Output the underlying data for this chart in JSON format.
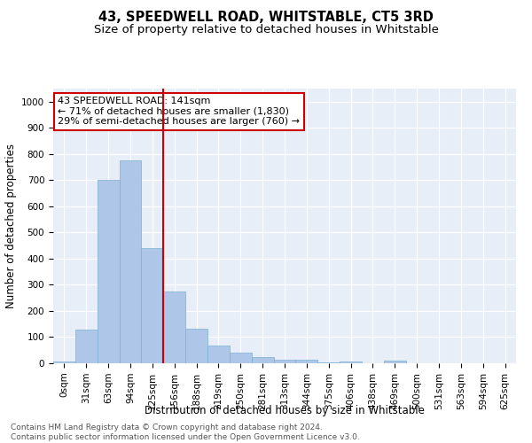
{
  "title": "43, SPEEDWELL ROAD, WHITSTABLE, CT5 3RD",
  "subtitle": "Size of property relative to detached houses in Whitstable",
  "xlabel": "Distribution of detached houses by size in Whitstable",
  "ylabel": "Number of detached properties",
  "bar_color": "#aec6e8",
  "bar_edge_color": "#7aafd4",
  "background_color": "#e8eef8",
  "grid_color": "white",
  "categories": [
    "0sqm",
    "31sqm",
    "63sqm",
    "94sqm",
    "125sqm",
    "156sqm",
    "188sqm",
    "219sqm",
    "250sqm",
    "281sqm",
    "313sqm",
    "344sqm",
    "375sqm",
    "406sqm",
    "438sqm",
    "469sqm",
    "500sqm",
    "531sqm",
    "563sqm",
    "594sqm",
    "625sqm"
  ],
  "values": [
    8,
    128,
    700,
    775,
    440,
    275,
    133,
    68,
    40,
    25,
    15,
    12,
    5,
    8,
    0,
    10,
    0,
    0,
    0,
    0,
    0
  ],
  "ylim": [
    0,
    1050
  ],
  "yticks": [
    0,
    100,
    200,
    300,
    400,
    500,
    600,
    700,
    800,
    900,
    1000
  ],
  "vline_x": 4.5,
  "vline_color": "#cc0000",
  "annotation_text": "43 SPEEDWELL ROAD: 141sqm\n← 71% of detached houses are smaller (1,830)\n29% of semi-detached houses are larger (760) →",
  "annotation_box_color": "#cc0000",
  "footnote": "Contains HM Land Registry data © Crown copyright and database right 2024.\nContains public sector information licensed under the Open Government Licence v3.0.",
  "title_fontsize": 10.5,
  "subtitle_fontsize": 9.5,
  "xlabel_fontsize": 8.5,
  "ylabel_fontsize": 8.5,
  "tick_fontsize": 7.5,
  "annotation_fontsize": 8,
  "footnote_fontsize": 6.5
}
